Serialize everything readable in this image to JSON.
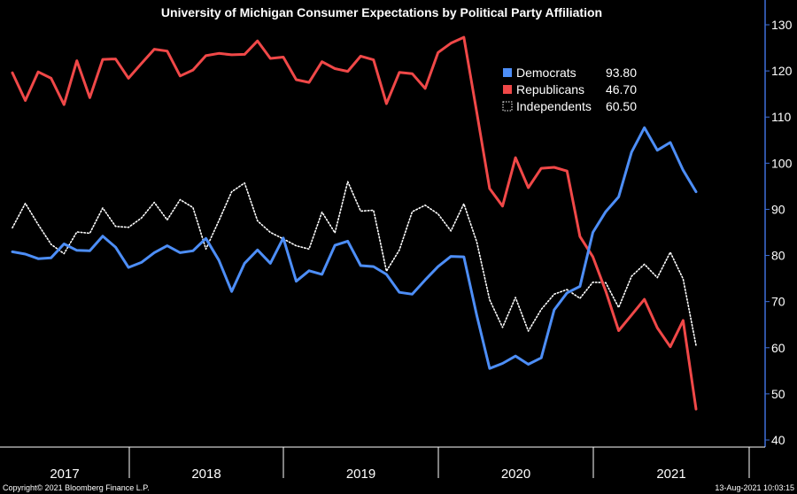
{
  "chart_data": {
    "type": "line",
    "title": "University of Michigan Consumer Expectations by Political Party Affiliation",
    "ylim": [
      40,
      130
    ],
    "yticks": [
      40,
      50,
      60,
      70,
      80,
      90,
      100,
      110,
      120,
      130
    ],
    "x_year_labels": [
      "2017",
      "2018",
      "2019",
      "2020",
      "2021"
    ],
    "grid": false,
    "legend_position": "top-right",
    "series": [
      {
        "name": "Democrats",
        "last_value_label": "93.80",
        "color": "#4d8ef7",
        "style": "solid",
        "values": [
          80.8,
          80.3,
          79.3,
          79.5,
          82.5,
          81.1,
          81.0,
          84.2,
          81.8,
          77.4,
          78.5,
          80.6,
          82.1,
          80.6,
          81.0,
          83.7,
          79.0,
          72.2,
          78.3,
          81.2,
          78.3,
          83.8,
          74.4,
          76.7,
          75.9,
          82.2,
          83.1,
          77.8,
          77.6,
          75.9,
          72.0,
          71.6,
          74.7,
          77.6,
          79.8,
          79.7,
          67.0,
          55.5,
          56.6,
          58.2,
          56.4,
          57.8,
          68.2,
          71.9,
          73.3,
          85.0,
          89.5,
          92.7,
          102.4,
          107.7,
          102.8,
          104.5,
          98.5,
          93.8
        ]
      },
      {
        "name": "Republicans",
        "last_value_label": "46.70",
        "color": "#f04848",
        "style": "solid",
        "values": [
          119.6,
          113.6,
          119.8,
          118.4,
          112.7,
          122.2,
          114.2,
          122.5,
          122.6,
          118.4,
          121.6,
          124.7,
          124.3,
          118.9,
          120.2,
          123.3,
          123.8,
          123.5,
          123.6,
          126.5,
          122.7,
          123.0,
          118.1,
          117.5,
          122.0,
          120.5,
          119.9,
          123.2,
          122.4,
          112.9,
          119.7,
          119.4,
          116.2,
          124.0,
          126.0,
          127.3,
          111.0,
          94.5,
          90.7,
          101.2,
          94.7,
          98.9,
          99.1,
          98.3,
          84.1,
          79.7,
          72.3,
          63.7,
          67.1,
          70.5,
          64.3,
          60.2,
          65.9,
          46.7
        ]
      },
      {
        "name": "Independents",
        "last_value_label": "60.50",
        "color": "#ffffff",
        "style": "dotted",
        "values": [
          86.0,
          91.3,
          86.7,
          82.4,
          80.4,
          85.1,
          84.8,
          90.3,
          86.3,
          86.1,
          88.1,
          91.5,
          87.7,
          92.1,
          90.4,
          81.4,
          87.5,
          93.8,
          95.7,
          87.5,
          85.0,
          83.6,
          82.1,
          81.4,
          89.4,
          84.9,
          96.0,
          89.6,
          89.8,
          76.6,
          81.2,
          89.5,
          90.9,
          89.0,
          85.3,
          91.2,
          82.9,
          70.4,
          64.4,
          70.9,
          63.6,
          68.3,
          71.6,
          72.6,
          70.7,
          74.2,
          74.1,
          68.7,
          75.5,
          78.1,
          75.2,
          80.7,
          74.9,
          60.5
        ]
      }
    ]
  },
  "footer": {
    "copyright": "Copyright© 2021 Bloomberg Finance L.P.",
    "timestamp": "13-Aug-2021 10:03:15"
  }
}
